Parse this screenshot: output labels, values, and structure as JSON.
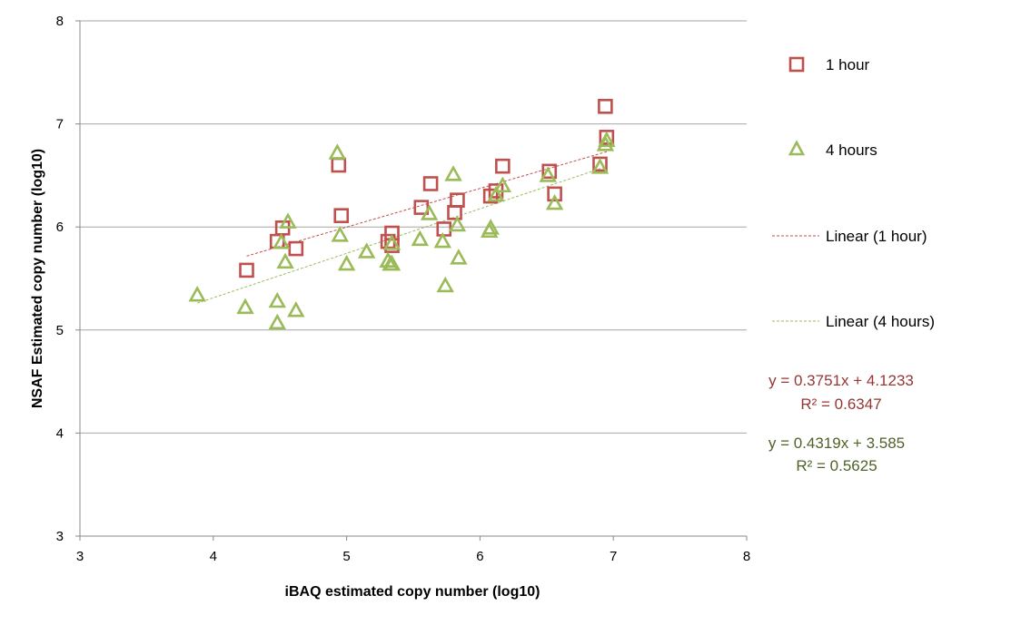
{
  "chart_data": {
    "type": "scatter",
    "xlabel": "iBAQ estimated copy number (log10)",
    "ylabel": "NSAF Estimated copy number (log10)",
    "xlim": [
      3,
      8
    ],
    "ylim": [
      3,
      8
    ],
    "x_ticks": [
      3,
      4,
      5,
      6,
      7,
      8
    ],
    "y_ticks": [
      3,
      4,
      5,
      6,
      7,
      8
    ],
    "grid": "horizontal",
    "legend_position": "right",
    "series": [
      {
        "name": "1 hour",
        "marker": "square",
        "color": "#C0504D",
        "points": [
          {
            "x": 4.25,
            "y": 5.58
          },
          {
            "x": 4.48,
            "y": 5.86
          },
          {
            "x": 4.52,
            "y": 5.99
          },
          {
            "x": 4.62,
            "y": 5.79
          },
          {
            "x": 4.94,
            "y": 6.6
          },
          {
            "x": 4.96,
            "y": 6.11
          },
          {
            "x": 5.31,
            "y": 5.86
          },
          {
            "x": 5.34,
            "y": 5.94
          },
          {
            "x": 5.34,
            "y": 5.82
          },
          {
            "x": 5.56,
            "y": 6.19
          },
          {
            "x": 5.63,
            "y": 6.42
          },
          {
            "x": 5.73,
            "y": 5.98
          },
          {
            "x": 5.81,
            "y": 6.14
          },
          {
            "x": 5.83,
            "y": 6.26
          },
          {
            "x": 6.08,
            "y": 6.3
          },
          {
            "x": 6.12,
            "y": 6.35
          },
          {
            "x": 6.17,
            "y": 6.59
          },
          {
            "x": 6.52,
            "y": 6.54
          },
          {
            "x": 6.56,
            "y": 6.32
          },
          {
            "x": 6.9,
            "y": 6.61
          },
          {
            "x": 6.94,
            "y": 7.17
          },
          {
            "x": 6.95,
            "y": 6.87
          }
        ]
      },
      {
        "name": "4 hours",
        "marker": "triangle",
        "color": "#9BBB59",
        "points": [
          {
            "x": 3.88,
            "y": 5.34
          },
          {
            "x": 4.24,
            "y": 5.22
          },
          {
            "x": 4.48,
            "y": 5.28
          },
          {
            "x": 4.48,
            "y": 5.07
          },
          {
            "x": 4.51,
            "y": 5.85
          },
          {
            "x": 4.54,
            "y": 5.66
          },
          {
            "x": 4.56,
            "y": 6.05
          },
          {
            "x": 4.62,
            "y": 5.19
          },
          {
            "x": 4.93,
            "y": 6.72
          },
          {
            "x": 4.95,
            "y": 5.92
          },
          {
            "x": 5.0,
            "y": 5.64
          },
          {
            "x": 5.15,
            "y": 5.76
          },
          {
            "x": 5.31,
            "y": 5.67
          },
          {
            "x": 5.33,
            "y": 5.64
          },
          {
            "x": 5.34,
            "y": 5.64
          },
          {
            "x": 5.34,
            "y": 5.84
          },
          {
            "x": 5.55,
            "y": 5.88
          },
          {
            "x": 5.62,
            "y": 6.13
          },
          {
            "x": 5.72,
            "y": 5.86
          },
          {
            "x": 5.74,
            "y": 5.43
          },
          {
            "x": 5.8,
            "y": 6.51
          },
          {
            "x": 5.83,
            "y": 6.02
          },
          {
            "x": 5.84,
            "y": 5.7
          },
          {
            "x": 6.07,
            "y": 5.96
          },
          {
            "x": 6.08,
            "y": 5.99
          },
          {
            "x": 6.12,
            "y": 6.31
          },
          {
            "x": 6.17,
            "y": 6.4
          },
          {
            "x": 6.51,
            "y": 6.5
          },
          {
            "x": 6.56,
            "y": 6.23
          },
          {
            "x": 6.9,
            "y": 6.58
          },
          {
            "x": 6.94,
            "y": 6.8
          },
          {
            "x": 6.95,
            "y": 6.84
          }
        ]
      }
    ],
    "trendlines": [
      {
        "name": "Linear (1 hour)",
        "color": "#C0504D",
        "slope": 0.3751,
        "intercept": 4.1233,
        "x_range": [
          4.25,
          6.95
        ]
      },
      {
        "name": "Linear (4 hours)",
        "color": "#9BBB59",
        "slope": 0.4319,
        "intercept": 3.585,
        "x_range": [
          3.88,
          6.95
        ]
      }
    ],
    "annotations": [
      {
        "equation": "y = 0.3751x + 4.1233",
        "r2": "R² = 0.6347",
        "color": "#953735"
      },
      {
        "equation": "y = 0.4319x + 3.585",
        "r2": "R² = 0.5625",
        "color": "#4F6228"
      }
    ]
  }
}
